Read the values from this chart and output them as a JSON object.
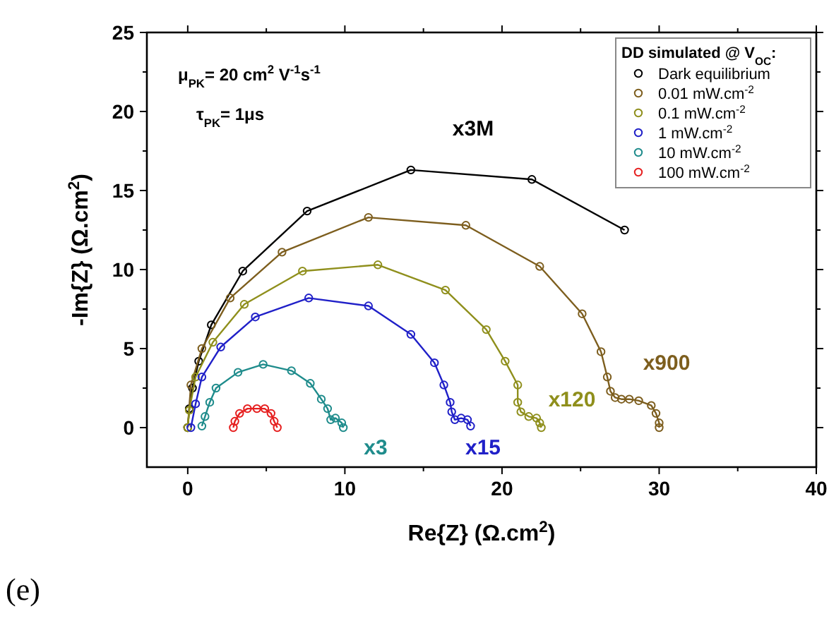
{
  "chart_data": {
    "type": "line",
    "xlabel": "Re{Z} (Ω.cm$^{2}$)",
    "ylabel": "-Im{Z} (Ω.cm$^{2}$)",
    "legend_title": "DD simulated @ V$_{OC}$:",
    "legend": "top right",
    "marker": "circle",
    "line_style": "solid",
    "xlim": [
      -2.6,
      40
    ],
    "ylim": [
      -2.5,
      25
    ],
    "xticks": [
      0,
      {
        "value": 5,
        "label": null
      },
      10,
      {
        "value": 15,
        "label": null
      },
      20,
      {
        "value": 25,
        "label": null
      },
      30,
      {
        "value": 35,
        "label": null
      },
      40
    ],
    "yticks": [
      0,
      {
        "value": 2.5,
        "label": null
      },
      5,
      {
        "value": 7.5,
        "label": null
      },
      10,
      {
        "value": 12.5,
        "label": null
      },
      15,
      {
        "value": 17.5,
        "label": null
      },
      20,
      {
        "value": 22.5,
        "label": null
      },
      25
    ],
    "series": [
      {
        "name": "Dark equilibrium",
        "color": "#000000",
        "x": [
          0,
          0.1,
          0.3,
          0.7,
          1.5,
          3.5,
          7.6,
          14.2,
          21.9,
          27.8
        ],
        "values": [
          0,
          1.2,
          2.5,
          4.2,
          6.5,
          9.9,
          13.7,
          16.3,
          15.7,
          12.5
        ]
      },
      {
        "name": "0.01 mW.cm$^{-2}$",
        "color": "#7d5e1e",
        "x": [
          0,
          0.2,
          0.9,
          2.7,
          6.0,
          11.5,
          17.7,
          22.4,
          25.1,
          26.3,
          26.7,
          26.9,
          27.2,
          27.6,
          28.1,
          28.7,
          29.5,
          29.8,
          30.0,
          30.0
        ],
        "values": [
          0,
          2.7,
          5.0,
          8.2,
          11.1,
          13.3,
          12.8,
          10.2,
          7.2,
          4.8,
          3.2,
          2.3,
          1.9,
          1.8,
          1.8,
          1.7,
          1.4,
          0.9,
          0.3,
          0
        ]
      },
      {
        "name": "0.1 mW.cm$^{-2}$",
        "color": "#8f8f1c",
        "x": [
          0,
          0.1,
          0.5,
          1.6,
          3.6,
          7.3,
          12.1,
          16.4,
          19.0,
          20.2,
          21.0,
          21.0,
          21.2,
          21.7,
          22.2,
          22.4,
          22.5
        ],
        "values": [
          0,
          1.1,
          3.2,
          5.4,
          7.8,
          9.9,
          10.3,
          8.7,
          6.2,
          4.2,
          2.7,
          1.6,
          1.0,
          0.7,
          0.6,
          0.3,
          0
        ]
      },
      {
        "name": "1 mW.cm$^{-2}$",
        "color": "#2020c8",
        "x": [
          0.2,
          0.5,
          0.9,
          2.1,
          4.3,
          7.7,
          11.5,
          14.2,
          15.7,
          16.3,
          16.7,
          16.8,
          17.0,
          17.4,
          17.8,
          18.0
        ],
        "values": [
          0,
          1.5,
          3.2,
          5.1,
          7.0,
          8.2,
          7.7,
          5.9,
          4.1,
          2.7,
          1.6,
          1.0,
          0.5,
          0.6,
          0.5,
          0.1
        ]
      },
      {
        "name": "10 mW.cm$^{-2}$",
        "color": "#1f8c8c",
        "x": [
          0.9,
          1.1,
          1.4,
          1.8,
          3.2,
          4.8,
          6.6,
          7.8,
          8.5,
          8.9,
          9.1,
          9.4,
          9.8,
          9.9
        ],
        "values": [
          0.1,
          0.7,
          1.6,
          2.5,
          3.5,
          4.0,
          3.6,
          2.8,
          1.8,
          1.2,
          0.5,
          0.6,
          0.3,
          0
        ]
      },
      {
        "name": "100 mW.cm$^{-2}$",
        "color": "#e62020",
        "x": [
          2.9,
          3.0,
          3.3,
          3.8,
          4.4,
          4.9,
          5.3,
          5.5,
          5.7
        ],
        "values": [
          0,
          0.4,
          0.9,
          1.2,
          1.2,
          1.2,
          0.9,
          0.4,
          0
        ]
      }
    ],
    "annotations": [
      "x3M",
      "x900",
      "x120",
      "x15",
      "x3",
      "μ$_{PK}$= 20 cm$^{2}$ V$^{-1}$s$^{-1}$",
      "τ$_{PK}$= 1μs",
      "(e)"
    ]
  }
}
